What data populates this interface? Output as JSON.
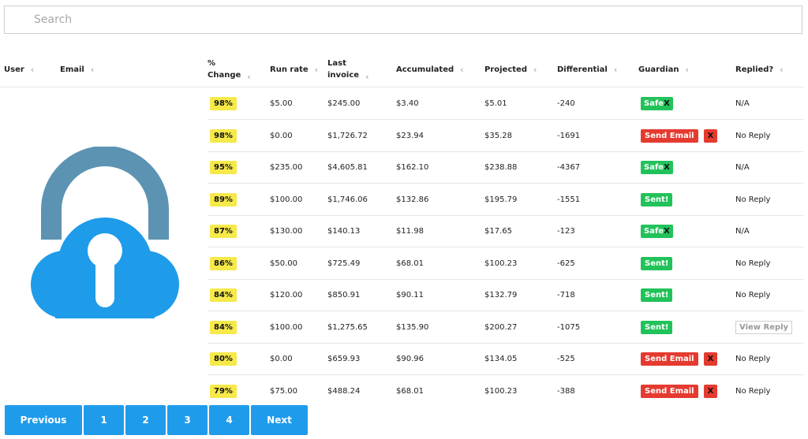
{
  "search": {
    "placeholder": "Search",
    "value": ""
  },
  "table": {
    "headers": {
      "user": "User",
      "email": "Email",
      "pct_change_line1": "%",
      "pct_change_line2": "Change",
      "run_rate": "Run rate",
      "last_invoice_line1": "Last",
      "last_invoice_line2": "invoice",
      "accumulated": "Accumulated",
      "projected": "Projected",
      "differential": "Differential",
      "guardian": "Guardian",
      "replied": "Replied?"
    },
    "rows": [
      {
        "pct": "98%",
        "run_rate": "$5.00",
        "last_invoice": "$245.00",
        "accumulated": "$3.40",
        "projected": "$5.01",
        "differential": "-240",
        "guardian": "safe",
        "guardian_text": "Safe",
        "guardian_x": "X",
        "replied": "N/A"
      },
      {
        "pct": "98%",
        "run_rate": "$0.00",
        "last_invoice": "$1,726.72",
        "accumulated": "$23.94",
        "projected": "$35.28",
        "differential": "-1691",
        "guardian": "send",
        "guardian_text": "Send Email",
        "guardian_x": "X",
        "replied": "No Reply"
      },
      {
        "pct": "95%",
        "run_rate": "$235.00",
        "last_invoice": "$4,605.81",
        "accumulated": "$162.10",
        "projected": "$238.88",
        "differential": "-4367",
        "guardian": "safe",
        "guardian_text": "Safe",
        "guardian_x": "X",
        "replied": "N/A"
      },
      {
        "pct": "89%",
        "run_rate": "$100.00",
        "last_invoice": "$1,746.06",
        "accumulated": "$132.86",
        "projected": "$195.79",
        "differential": "-1551",
        "guardian": "sent",
        "guardian_text": "Sent!",
        "guardian_x": "",
        "replied": "No Reply"
      },
      {
        "pct": "87%",
        "run_rate": "$130.00",
        "last_invoice": "$140.13",
        "accumulated": "$11.98",
        "projected": "$17.65",
        "differential": "-123",
        "guardian": "safe",
        "guardian_text": "Safe",
        "guardian_x": "X",
        "replied": "N/A"
      },
      {
        "pct": "86%",
        "run_rate": "$50.00",
        "last_invoice": "$725.49",
        "accumulated": "$68.01",
        "projected": "$100.23",
        "differential": "-625",
        "guardian": "sent",
        "guardian_text": "Sent!",
        "guardian_x": "",
        "replied": "No Reply"
      },
      {
        "pct": "84%",
        "run_rate": "$120.00",
        "last_invoice": "$850.91",
        "accumulated": "$90.11",
        "projected": "$132.79",
        "differential": "-718",
        "guardian": "sent",
        "guardian_text": "Sent!",
        "guardian_x": "",
        "replied": "No Reply"
      },
      {
        "pct": "84%",
        "run_rate": "$100.00",
        "last_invoice": "$1,275.65",
        "accumulated": "$135.90",
        "projected": "$200.27",
        "differential": "-1075",
        "guardian": "sent",
        "guardian_text": "Sent!",
        "guardian_x": "",
        "replied": "View Reply",
        "replied_button": true
      },
      {
        "pct": "80%",
        "run_rate": "$0.00",
        "last_invoice": "$659.93",
        "accumulated": "$90.96",
        "projected": "$134.05",
        "differential": "-525",
        "guardian": "send",
        "guardian_text": "Send Email",
        "guardian_x": "X",
        "replied": "No Reply"
      },
      {
        "pct": "79%",
        "run_rate": "$75.00",
        "last_invoice": "$488.24",
        "accumulated": "$68.01",
        "projected": "$100.23",
        "differential": "-388",
        "guardian": "send",
        "guardian_text": "Send Email",
        "guardian_x": "X",
        "replied": "No Reply"
      }
    ]
  },
  "pagination": {
    "previous": "Previous",
    "pages": [
      "1",
      "2",
      "3",
      "4"
    ],
    "next": "Next"
  },
  "icons": {
    "search": "search-icon",
    "sort": "sort-chevron-icon",
    "logo": "cloud-padlock-icon"
  },
  "colors": {
    "pct_badge": "#f6e94a",
    "safe": "#22c25a",
    "sent": "#22c25a",
    "send_email": "#e53a2f",
    "pager": "#1f9bec",
    "padlock_shackle": "#5c93b2",
    "cloud": "#1e9be9"
  }
}
